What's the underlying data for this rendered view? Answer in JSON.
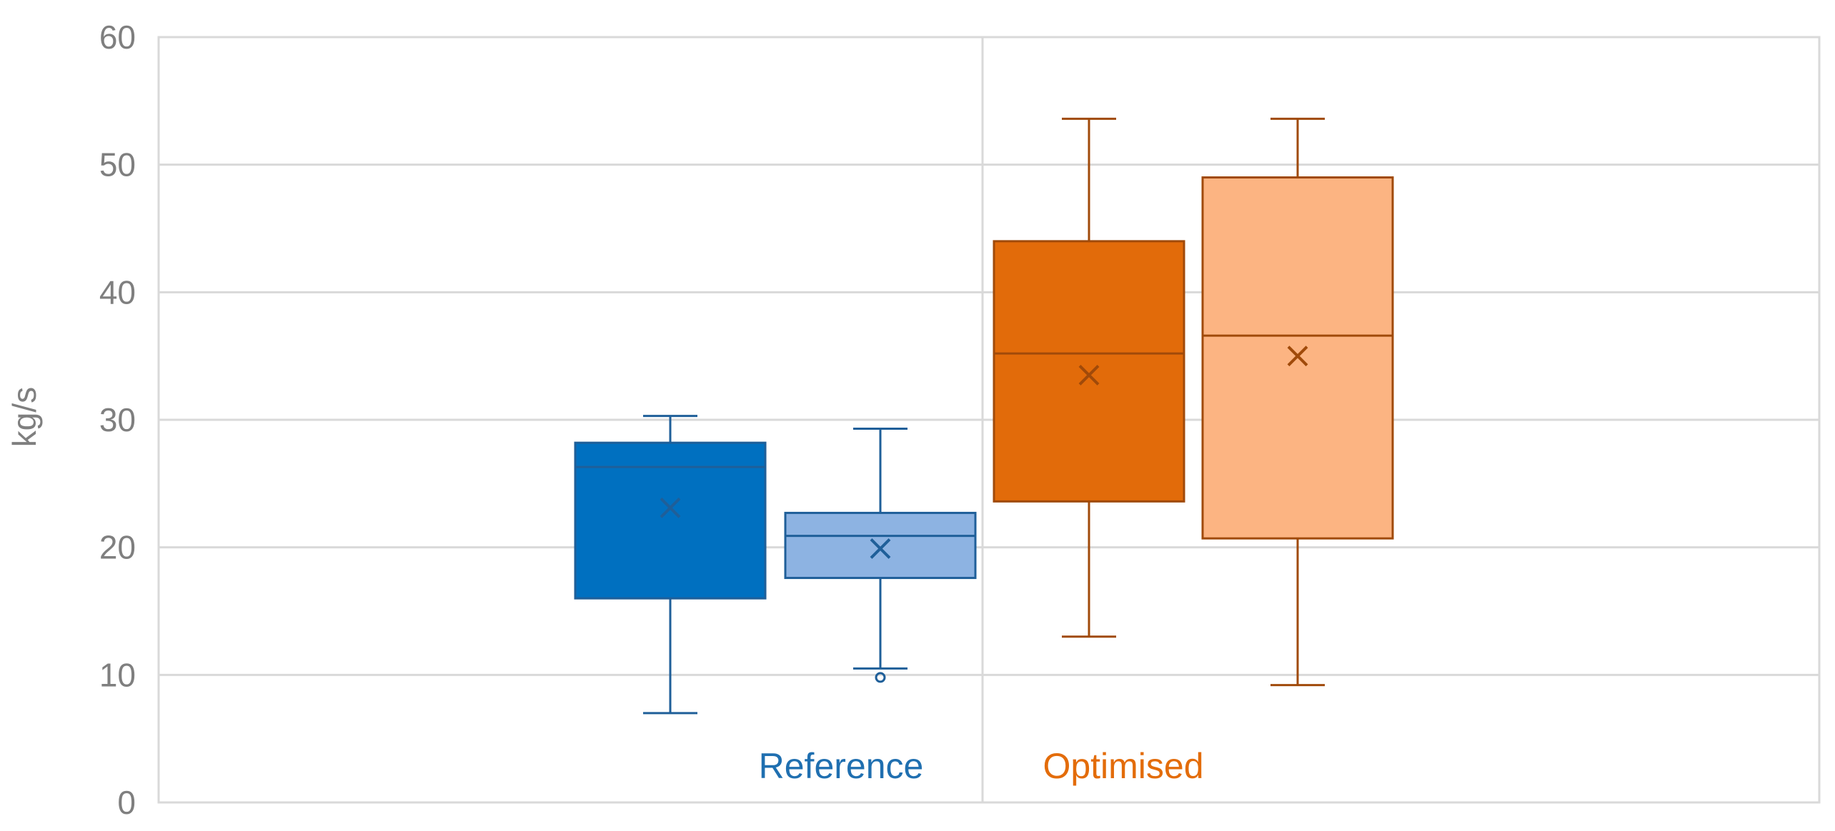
{
  "chart_data": {
    "type": "box",
    "title": "",
    "xlabel": "",
    "ylabel": "kg/s",
    "ylim": [
      0,
      60
    ],
    "yticks": [
      0,
      10,
      20,
      30,
      40,
      50,
      60
    ],
    "ytick_labels": [
      "0",
      "10",
      "20",
      "30",
      "40",
      "50",
      "60"
    ],
    "grid": true,
    "groups": [
      {
        "label": "Reference",
        "color": "#1f6fb0"
      },
      {
        "label": "Optimised",
        "color": "#e36c0a"
      }
    ],
    "boxes": [
      {
        "group": 0,
        "fill": "#0070c0",
        "stroke": "#1f5f99",
        "min": 7.0,
        "q1": 16.0,
        "median": 26.3,
        "q3": 28.2,
        "max": 30.3,
        "mean": 23.1,
        "outliers": []
      },
      {
        "group": 0,
        "fill": "#8db3e2",
        "stroke": "#1f5f99",
        "min": 10.5,
        "q1": 17.6,
        "median": 20.9,
        "q3": 22.7,
        "max": 29.3,
        "mean": 19.9,
        "outliers": [
          9.8
        ]
      },
      {
        "group": 1,
        "fill": "#e26b0a",
        "stroke": "#a04a0a",
        "min": 13.0,
        "q1": 23.6,
        "median": 35.2,
        "q3": 44.0,
        "max": 53.6,
        "mean": 33.5,
        "outliers": []
      },
      {
        "group": 1,
        "fill": "#fcb482",
        "stroke": "#a04a0a",
        "min": 9.2,
        "q1": 20.7,
        "median": 36.6,
        "q3": 49.0,
        "max": 53.6,
        "mean": 35.0,
        "outliers": []
      }
    ]
  }
}
